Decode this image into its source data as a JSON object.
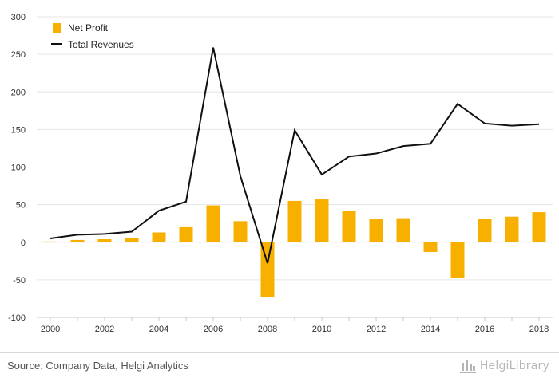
{
  "chart_data": {
    "type": "bar+line",
    "title": "",
    "xlabel": "",
    "ylabel": "",
    "ylim": [
      -100,
      300
    ],
    "yticks": [
      300,
      250,
      200,
      150,
      100,
      50,
      0,
      -50,
      -100
    ],
    "xtick_labels": [
      "2000",
      "2002",
      "2004",
      "2006",
      "2008",
      "2010",
      "2012",
      "2014",
      "2016",
      "2018"
    ],
    "years": [
      2000,
      2001,
      2002,
      2003,
      2004,
      2005,
      2006,
      2007,
      2008,
      2009,
      2010,
      2011,
      2012,
      2013,
      2014,
      2015,
      2016,
      2017,
      2018
    ],
    "legend_position": "top-left",
    "series": [
      {
        "name": "Net Profit",
        "type": "bar",
        "color": "#f8b000",
        "values": [
          1,
          3,
          4,
          6,
          13,
          20,
          49,
          28,
          -73,
          55,
          57,
          42,
          31,
          32,
          -13,
          -48,
          31,
          34,
          40
        ]
      },
      {
        "name": "Total Revenues",
        "type": "line",
        "color": "#111111",
        "values": [
          5,
          10,
          11,
          14,
          42,
          54,
          259,
          88,
          -28,
          149,
          90,
          114,
          118,
          128,
          131,
          184,
          158,
          155,
          157
        ]
      }
    ]
  },
  "legend": {
    "net_profit": "Net Profit",
    "total_revenues": "Total Revenues"
  },
  "footer": {
    "source": "Source: Company Data, Helgi Analytics",
    "logo": "HelgiLibrary"
  },
  "logo_color": "#b5b5b5"
}
